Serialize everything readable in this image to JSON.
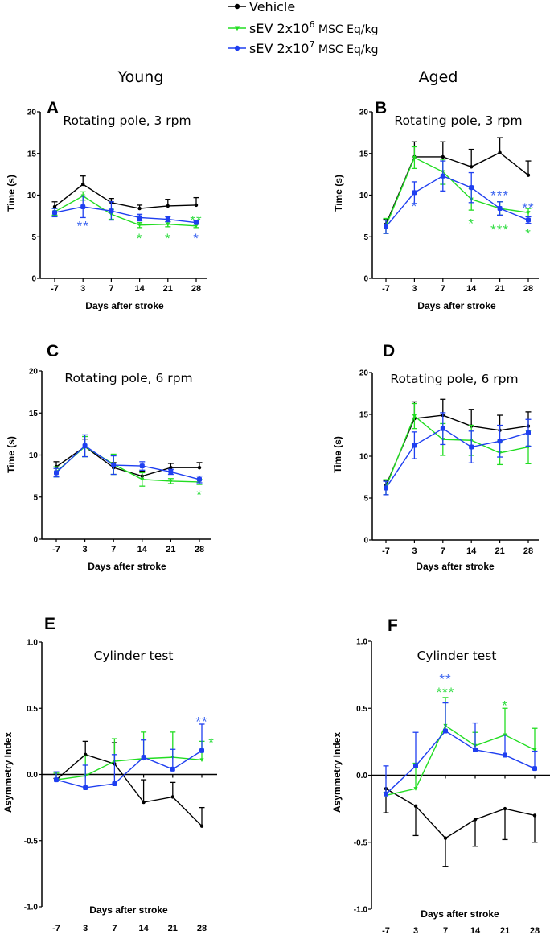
{
  "legend": [
    {
      "label": "Vehicle",
      "sup": "",
      "suffix": "",
      "color": "#000000",
      "marker": "circle"
    },
    {
      "label": "sEV  2x10",
      "sup": "6",
      "suffix": " MSC Eq/kg",
      "color": "#22dd22",
      "marker": "triangle-down"
    },
    {
      "label": "sEV  2x10",
      "sup": "7",
      "suffix": " MSC Eq/kg",
      "color": "#1f3ff0",
      "marker": "circle"
    }
  ],
  "column_headers": {
    "left": "Young",
    "right": "Aged"
  },
  "chart_data": [
    {
      "panel": "A",
      "type": "line",
      "title": "Rotating pole, 3 rpm",
      "xlabel": "Days after stroke",
      "ylabel": "Time (s)",
      "categories": [
        "-7",
        "3",
        "7",
        "14",
        "21",
        "28"
      ],
      "ylim": [
        0,
        20
      ],
      "yticks": [
        "0",
        "5",
        "10",
        "15",
        "20"
      ],
      "grid": false,
      "series": [
        {
          "values": [
            8.6,
            11.3,
            9.1,
            8.4,
            8.7,
            8.8
          ],
          "sem": [
            0.6,
            1.0,
            0.5,
            0.4,
            0.8,
            0.9
          ],
          "err_dir": "up",
          "color": "#000000"
        },
        {
          "values": [
            8.0,
            9.9,
            7.7,
            6.4,
            6.5,
            6.3
          ],
          "sem": [
            0.4,
            0.5,
            0.6,
            0.3,
            0.3,
            0.2
          ],
          "err_dir": "both",
          "color": "#22dd22"
        },
        {
          "values": [
            7.9,
            8.6,
            8.1,
            7.3,
            7.1,
            6.7
          ],
          "sem": [
            0.5,
            1.3,
            1.1,
            0.4,
            0.3,
            0.2
          ],
          "err_dir": "both",
          "color": "#1f3ff0"
        }
      ],
      "annotations": [
        {
          "text": "**",
          "x": "3",
          "y": 6.6,
          "color": "#4169f0"
        },
        {
          "text": "*",
          "x": "14",
          "y": 5.1,
          "color": "#33dd44"
        },
        {
          "text": "*",
          "x": "21",
          "y": 5.1,
          "color": "#33dd44"
        },
        {
          "text": "**",
          "x": "28",
          "y": 7.3,
          "color": "#33dd44"
        },
        {
          "text": "*",
          "x": "28",
          "y": 5.1,
          "color": "#4169f0"
        }
      ]
    },
    {
      "panel": "B",
      "type": "line",
      "title": "Rotating pole, 3 rpm",
      "xlabel": "Days after stroke",
      "ylabel": "Time (s)",
      "categories": [
        "-7",
        "3",
        "7",
        "14",
        "21",
        "28"
      ],
      "ylim": [
        0,
        20
      ],
      "yticks": [
        "0",
        "5",
        "10",
        "15",
        "20"
      ],
      "grid": false,
      "series": [
        {
          "values": [
            6.5,
            14.6,
            14.6,
            13.4,
            15.1,
            12.4
          ],
          "sem": [
            0.6,
            1.8,
            1.8,
            2.1,
            1.8,
            1.7
          ],
          "err_dir": "up",
          "color": "#000000"
        },
        {
          "values": [
            6.3,
            14.5,
            12.8,
            9.5,
            8.4,
            7.9
          ],
          "sem": [
            0.9,
            1.3,
            1.5,
            1.3,
            0.8,
            0.5
          ],
          "err_dir": "both",
          "color": "#22dd22"
        },
        {
          "values": [
            6.2,
            10.3,
            12.3,
            10.9,
            8.4,
            7.0
          ],
          "sem": [
            0.8,
            1.3,
            1.8,
            1.8,
            0.8,
            0.4
          ],
          "err_dir": "both",
          "color": "#1f3ff0"
        }
      ],
      "annotations": [
        {
          "text": "*",
          "x": "3",
          "y": 9.0,
          "color": "#4169f0"
        },
        {
          "text": "*",
          "x": "14",
          "y": 6.9,
          "color": "#33dd44"
        },
        {
          "text": "***",
          "x": "21",
          "y": 10.3,
          "color": "#4169f0"
        },
        {
          "text": "***",
          "x": "21",
          "y": 6.2,
          "color": "#33dd44"
        },
        {
          "text": "**",
          "x": "28",
          "y": 8.8,
          "color": "#4169f0"
        },
        {
          "text": "*",
          "x": "28",
          "y": 5.7,
          "color": "#33dd44"
        }
      ]
    },
    {
      "panel": "C",
      "type": "line",
      "title": "Rotating pole, 6 rpm",
      "xlabel": "Days after stroke",
      "ylabel": "Time (s)",
      "categories": [
        "-7",
        "3",
        "7",
        "14",
        "21",
        "28"
      ],
      "ylim": [
        0,
        20
      ],
      "yticks": [
        "0",
        "5",
        "10",
        "15",
        "20"
      ],
      "grid": false,
      "series": [
        {
          "values": [
            8.6,
            11.0,
            8.5,
            7.5,
            8.5,
            8.5
          ],
          "sem": [
            0.6,
            0.9,
            0.6,
            0.6,
            0.5,
            0.6
          ],
          "err_dir": "up",
          "color": "#000000"
        },
        {
          "values": [
            8.0,
            11.0,
            8.9,
            7.1,
            6.9,
            6.8
          ],
          "sem": [
            0.6,
            1.2,
            1.2,
            0.8,
            0.3,
            0.3
          ],
          "err_dir": "both",
          "color": "#22dd22"
        },
        {
          "values": [
            7.9,
            11.1,
            8.8,
            8.7,
            8.0,
            7.1
          ],
          "sem": [
            0.5,
            1.3,
            1.1,
            0.5,
            0.3,
            0.4
          ],
          "err_dir": "both",
          "color": "#1f3ff0"
        }
      ],
      "annotations": [
        {
          "text": "*",
          "x": "28",
          "y": 5.6,
          "color": "#33dd44"
        }
      ]
    },
    {
      "panel": "D",
      "type": "line",
      "title": "Rotating pole, 6 rpm",
      "xlabel": "Days after stroke",
      "ylabel": "Time (s)",
      "categories": [
        "-7",
        "3",
        "7",
        "14",
        "21",
        "28"
      ],
      "ylim": [
        0,
        20
      ],
      "yticks": [
        "0",
        "5",
        "10",
        "15",
        "20"
      ],
      "grid": false,
      "series": [
        {
          "values": [
            6.5,
            14.5,
            14.9,
            13.6,
            13.1,
            13.6
          ],
          "sem": [
            0.6,
            2.0,
            1.9,
            2.0,
            1.8,
            1.7
          ],
          "err_dir": "up",
          "color": "#000000"
        },
        {
          "values": [
            6.3,
            14.8,
            12.0,
            11.9,
            10.4,
            11.1
          ],
          "sem": [
            0.9,
            1.5,
            1.9,
            1.8,
            1.4,
            2.0
          ],
          "err_dir": "both",
          "color": "#22dd22"
        },
        {
          "values": [
            6.2,
            11.3,
            13.3,
            11.1,
            11.8,
            12.8
          ],
          "sem": [
            0.8,
            1.6,
            1.9,
            1.9,
            1.9,
            1.6
          ],
          "err_dir": "both",
          "color": "#1f3ff0"
        }
      ],
      "annotations": []
    },
    {
      "panel": "E",
      "type": "line",
      "title": "Cylinder test",
      "xlabel": "Days after stroke",
      "ylabel": "Asymmetry Index",
      "categories": [
        "-7",
        "3",
        "7",
        "14",
        "21",
        "28"
      ],
      "ylim": [
        -1.0,
        1.0
      ],
      "yticks": [
        "-1.0",
        "-0.5",
        "0.0",
        "0.5",
        "1.0"
      ],
      "grid": false,
      "series": [
        {
          "values": [
            -0.04,
            0.15,
            0.08,
            -0.21,
            -0.17,
            -0.39
          ],
          "sem": [
            0.01,
            0.1,
            0.16,
            0.17,
            0.11,
            0.14
          ],
          "err_dir": "up",
          "color": "#000000"
        },
        {
          "values": [
            -0.04,
            -0.01,
            0.1,
            0.12,
            0.13,
            0.11
          ],
          "sem": [
            0.05,
            0.15,
            0.17,
            0.2,
            0.19,
            0.14
          ],
          "err_dir": "up",
          "color": "#22dd22"
        },
        {
          "values": [
            -0.04,
            -0.1,
            -0.07,
            0.13,
            0.04,
            0.18
          ],
          "sem": [
            0.06,
            0.17,
            0.22,
            0.13,
            0.15,
            0.2
          ],
          "err_dir": "up",
          "color": "#1f3ff0"
        }
      ],
      "annotations": [
        {
          "text": "**",
          "x": "28",
          "y": 0.42,
          "color": "#4169f0"
        },
        {
          "text": "*",
          "x": "28",
          "y": 0.26,
          "color": "#33dd44",
          "offset": "right"
        }
      ]
    },
    {
      "panel": "F",
      "type": "line",
      "title": "Cylinder test",
      "xlabel": "Days after stroke",
      "ylabel": "Asymmetry Index",
      "categories": [
        "-7",
        "3",
        "7",
        "14",
        "21",
        "28"
      ],
      "ylim": [
        -1.0,
        1.0
      ],
      "yticks": [
        "-1.0",
        "-0.5",
        "0.0",
        "0.5",
        "1.0"
      ],
      "grid": false,
      "series": [
        {
          "values": [
            -0.1,
            -0.23,
            -0.47,
            -0.33,
            -0.25,
            -0.3
          ],
          "sem": [
            0.18,
            0.22,
            0.21,
            0.2,
            0.23,
            0.2
          ],
          "err_dir": "down",
          "color": "#000000"
        },
        {
          "values": [
            -0.15,
            -0.1,
            0.37,
            0.22,
            0.3,
            0.19
          ],
          "sem": [
            0.02,
            0.19,
            0.21,
            0.1,
            0.2,
            0.16
          ],
          "err_dir": "up",
          "color": "#22dd22"
        },
        {
          "values": [
            -0.14,
            0.07,
            0.33,
            0.19,
            0.15,
            0.05
          ],
          "sem": [
            0.21,
            0.25,
            0.21,
            0.2,
            0.15,
            0.13
          ],
          "err_dir": "up",
          "color": "#1f3ff0"
        }
      ],
      "annotations": [
        {
          "text": "**",
          "x": "7",
          "y": 0.74,
          "color": "#4169f0"
        },
        {
          "text": "***",
          "x": "7",
          "y": 0.64,
          "color": "#33dd44"
        },
        {
          "text": "*",
          "x": "21",
          "y": 0.54,
          "color": "#33dd44"
        }
      ]
    }
  ]
}
